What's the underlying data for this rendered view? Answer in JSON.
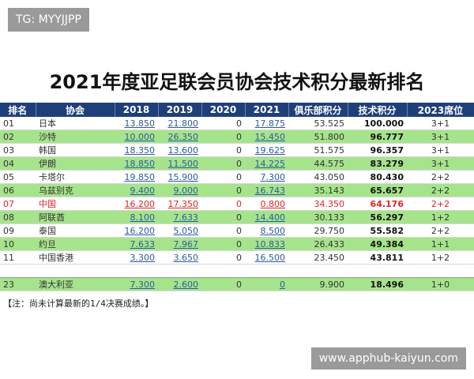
{
  "watermark_label": "TG: MYYJJPP",
  "title": "2021年度亚足联会员协会技术积分最新排名",
  "table": {
    "header": [
      "排名",
      "协会",
      "2018",
      "2019",
      "2020",
      "2021",
      "俱乐部积分",
      "技术积分",
      "2023席位"
    ],
    "header_color": "#1f3f78",
    "rows": [
      {
        "cells": [
          "01",
          "日本",
          "13.850",
          "21.800",
          "0",
          "17.875",
          "53.525",
          "100.000",
          "3+1"
        ],
        "fill": "#ffffff"
      },
      {
        "cells": [
          "02",
          "沙特",
          "10.000",
          "26.350",
          "0",
          "15.450",
          "51.800",
          "96.777",
          "3+1"
        ],
        "fill": "#a6e48c"
      },
      {
        "cells": [
          "03",
          "韩国",
          "18.350",
          "13.600",
          "0",
          "19.625",
          "51.575",
          "96.357",
          "3+1"
        ],
        "fill": "#ffffff"
      },
      {
        "cells": [
          "04",
          "伊朗",
          "18.850",
          "11.500",
          "0",
          "14.225",
          "44.575",
          "83.279",
          "3+1"
        ],
        "fill": "#a6e48c"
      },
      {
        "cells": [
          "05",
          "卡塔尔",
          "19.850",
          "15.900",
          "0",
          "7.300",
          "43.050",
          "80.430",
          "2+2"
        ],
        "fill": "#ffffff"
      },
      {
        "cells": [
          "06",
          "乌兹别克",
          "9.400",
          "9.000",
          "0",
          "16.743",
          "35.143",
          "65.657",
          "2+2"
        ],
        "fill": "#a6e48c"
      },
      {
        "cells": [
          "07",
          "中国",
          "16.200",
          "17.350",
          "0",
          "0.800",
          "34.350",
          "64.176",
          "2+2"
        ],
        "fill": "#ffffff",
        "text_color": "#e02424"
      },
      {
        "cells": [
          "08",
          "阿联酋",
          "8.100",
          "7.633",
          "0",
          "14.400",
          "30.133",
          "56.297",
          "1+2"
        ],
        "fill": "#a6e48c"
      },
      {
        "cells": [
          "09",
          "泰国",
          "16.200",
          "5.050",
          "0",
          "8.500",
          "29.750",
          "55.582",
          "2+2"
        ],
        "fill": "#ffffff"
      },
      {
        "cells": [
          "10",
          "约旦",
          "7.633",
          "7.967",
          "0",
          "10.833",
          "26.433",
          "49.384",
          "1+1"
        ],
        "fill": "#a6e48c"
      },
      {
        "cells": [
          "11",
          "中国香港",
          "3.300",
          "3.650",
          "0",
          "16.500",
          "23.450",
          "43.811",
          "1+2"
        ],
        "fill": "#ffffff"
      }
    ],
    "bottom_rows": [
      {
        "cells": [
          "23",
          "澳大利亚",
          "7.300",
          "2.600",
          "0",
          "0",
          "9.900",
          "18.496",
          "1+0"
        ],
        "fill": "#a6e48c"
      }
    ]
  },
  "footnote": "【注：尚未计算最新的1/4决赛成绩。】",
  "site_label": "www.apphub-kaiyun.com"
}
